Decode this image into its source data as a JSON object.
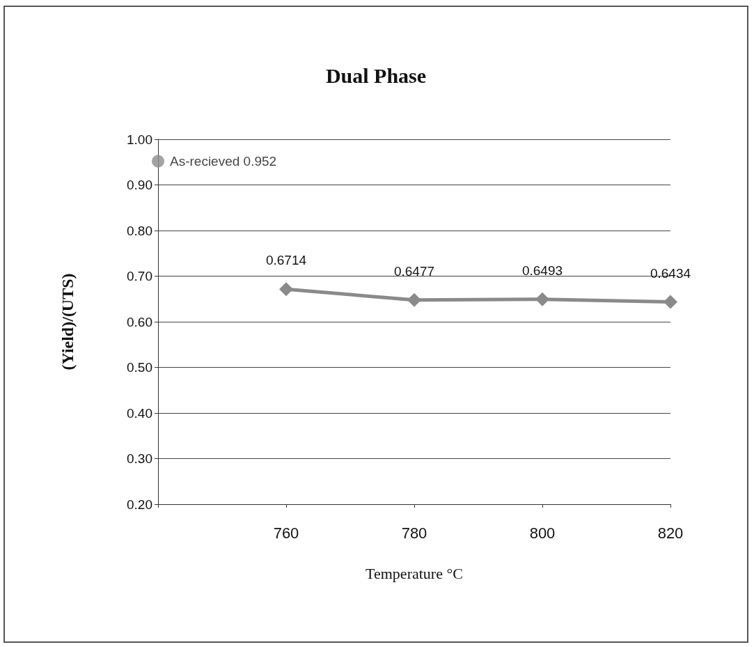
{
  "chart_data": {
    "type": "line",
    "title": "Dual Phase",
    "xlabel": "Temperature °C",
    "ylabel": "(Yield)/(UTS)",
    "categories": [
      null,
      "760",
      "780",
      "800",
      "820"
    ],
    "series": [
      {
        "type": "scatter",
        "marker": "circle",
        "color": "#8c8c8c",
        "values": [
          0.952,
          null,
          null,
          null,
          null
        ],
        "value_labels": [
          "As-recieved 0.952",
          null,
          null,
          null,
          null
        ]
      },
      {
        "marker": "diamond",
        "color": "#8a8a8a",
        "values": [
          null,
          0.6714,
          0.6477,
          0.6493,
          0.6434
        ],
        "value_labels": [
          null,
          "0.6714",
          "0.6477",
          "0.6493",
          "0.6434"
        ]
      }
    ],
    "ylim": [
      0.2,
      1.0
    ],
    "yticks": [
      {
        "value": 0.2,
        "label": "0.20"
      },
      {
        "value": 0.3,
        "label": "0.30"
      },
      {
        "value": 0.4,
        "label": "0.40"
      },
      {
        "value": 0.5,
        "label": "0.50"
      },
      {
        "value": 0.6,
        "label": "0.60"
      },
      {
        "value": 0.7,
        "label": "0.70"
      },
      {
        "value": 0.8,
        "label": "0.80"
      },
      {
        "value": 0.9,
        "label": "0.90"
      },
      {
        "value": 1.0,
        "label": "1.00"
      }
    ],
    "grid": "y"
  }
}
